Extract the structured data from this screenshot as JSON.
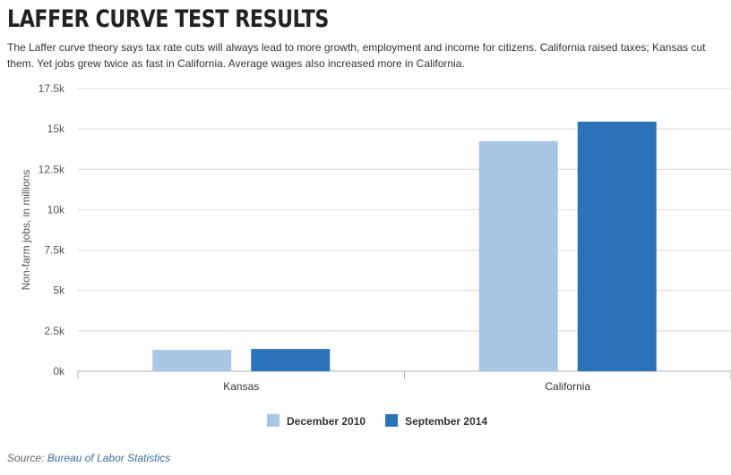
{
  "title": "LAFFER CURVE TEST RESULTS",
  "subtitle": "The Laffer curve theory says tax rate cuts will always lead to more growth, employment and income for citizens. California raised taxes; Kansas cut them. Yet jobs grew twice as fast in California. Average wages also increased more in California.",
  "source": {
    "prefix": "Source:",
    "link_text": "Bureau of Labor Statistics"
  },
  "chart_data": {
    "type": "bar",
    "categories": [
      "Kansas",
      "California"
    ],
    "series": [
      {
        "name": "December 2010",
        "values": [
          1320,
          14250
        ],
        "color": "#a9c5e4"
      },
      {
        "name": "September 2014",
        "values": [
          1380,
          15450
        ],
        "color": "#2b72b8"
      }
    ],
    "ylabel": "Non-farm jobs, in millions",
    "ylim": [
      0,
      17500
    ],
    "yticks": [
      0,
      2500,
      5000,
      7500,
      10000,
      12500,
      15000,
      17500
    ],
    "ytick_labels": [
      "0k",
      "2.5k",
      "5k",
      "7.5k",
      "10k",
      "12.5k",
      "15k",
      "17.5k"
    ],
    "grid": true,
    "legend_position": "bottom-center"
  }
}
